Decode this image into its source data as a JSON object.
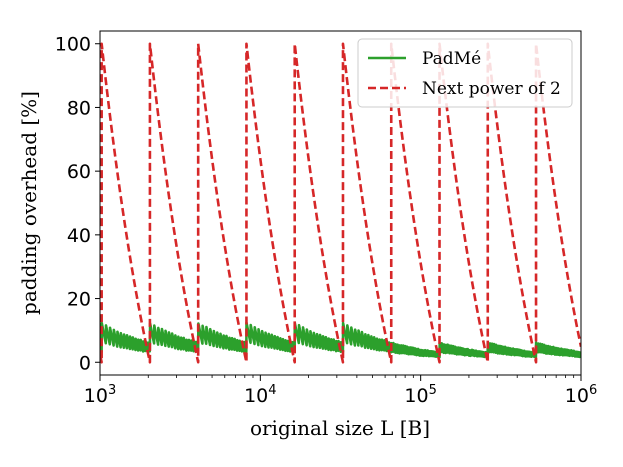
{
  "chart_data": {
    "type": "line",
    "title": "",
    "xlabel": "original size L [B]",
    "ylabel": "padding overhead [%]",
    "xscale": "log",
    "xlim": [
      1000,
      1000000
    ],
    "ylim": [
      -4,
      104
    ],
    "xticks": [
      {
        "value": 1000,
        "base": "10",
        "exp": "3"
      },
      {
        "value": 10000,
        "base": "10",
        "exp": "4"
      },
      {
        "value": 100000,
        "base": "10",
        "exp": "5"
      },
      {
        "value": 1000000,
        "base": "10",
        "exp": "6"
      }
    ],
    "yticks": [
      0,
      20,
      40,
      60,
      80,
      100
    ],
    "grid": false,
    "legend_position": "top-right",
    "series": [
      {
        "name": "PadMé",
        "color": "#2ca02c",
        "style": "solid",
        "function": "padme_overhead_percent"
      },
      {
        "name": "Next power of 2",
        "color": "#d62728",
        "style": "dashed",
        "function": "next_power_of_two_overhead_percent"
      }
    ]
  }
}
